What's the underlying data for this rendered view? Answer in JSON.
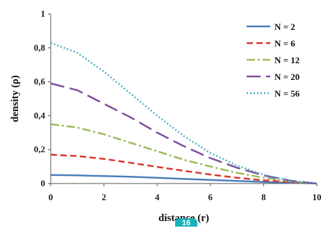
{
  "chart_data": {
    "type": "line",
    "xlabel": "distance (r)",
    "ylabel": "density (ρ)",
    "xlim": [
      0,
      10
    ],
    "ylim": [
      0,
      1
    ],
    "x_ticks": [
      "0",
      "2",
      "4",
      "6",
      "8",
      "10"
    ],
    "y_ticks": [
      "0",
      "0,2",
      "0,4",
      "0,6",
      "0,8",
      "1"
    ],
    "grid": false,
    "legend_position": "top-right",
    "x": [
      0,
      1,
      2,
      3,
      4,
      5,
      6,
      7,
      8,
      9,
      10
    ],
    "series": [
      {
        "name": "N = 2",
        "color": "#4a7ebb",
        "dash": "solid",
        "values": [
          0.05,
          0.048,
          0.044,
          0.04,
          0.034,
          0.027,
          0.021,
          0.015,
          0.009,
          0.004,
          0.0
        ]
      },
      {
        "name": "N = 6",
        "color": "#d9342b",
        "dash": "dashed",
        "values": [
          0.17,
          0.162,
          0.145,
          0.122,
          0.098,
          0.075,
          0.053,
          0.034,
          0.019,
          0.008,
          0.0
        ]
      },
      {
        "name": "N = 12",
        "color": "#9bbb59",
        "dash": "dashdot",
        "values": [
          0.35,
          0.33,
          0.29,
          0.24,
          0.19,
          0.14,
          0.1,
          0.063,
          0.034,
          0.013,
          0.0
        ]
      },
      {
        "name": "N = 20",
        "color": "#7c4d9f",
        "dash": "longdash",
        "values": [
          0.59,
          0.55,
          0.47,
          0.39,
          0.3,
          0.22,
          0.15,
          0.093,
          0.048,
          0.017,
          0.0
        ]
      },
      {
        "name": "N = 56",
        "color": "#4bacc6",
        "dash": "dotted",
        "values": [
          0.83,
          0.77,
          0.66,
          0.53,
          0.4,
          0.28,
          0.18,
          0.106,
          0.052,
          0.018,
          0.0
        ]
      }
    ]
  },
  "badge_text": "16"
}
